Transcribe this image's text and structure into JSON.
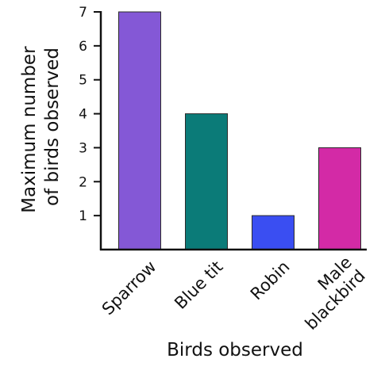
{
  "chart_data": {
    "type": "bar",
    "categories": [
      "Sparrow",
      "Blue tit",
      "Robin",
      "Male blackbird"
    ],
    "category_lines": [
      [
        "Sparrow"
      ],
      [
        "Blue tit"
      ],
      [
        "Robin"
      ],
      [
        "Male",
        "blackbird"
      ]
    ],
    "values": [
      7,
      4,
      1,
      3
    ],
    "colors": [
      "#8458d6",
      "#0b7b78",
      "#3a4ef2",
      "#d32aa6"
    ],
    "xlabel": "Birds observed",
    "ylabel_lines": [
      "Maximum number",
      "of birds observed"
    ],
    "ylim": [
      0,
      7
    ],
    "yticks": [
      1,
      2,
      3,
      4,
      5,
      6,
      7
    ],
    "grid": false
  }
}
